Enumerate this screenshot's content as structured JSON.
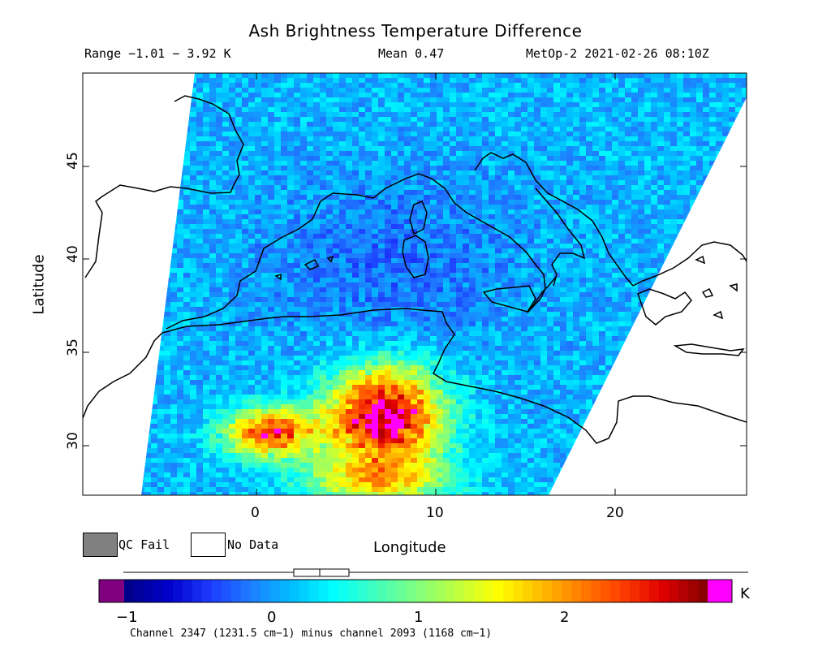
{
  "header": {
    "title": "Ash Brightness Temperature Difference",
    "range": "Range −1.01 − 3.92 K",
    "mean": "Mean 0.47",
    "satellite": "MetOp-2 2021-02-26 08:10Z"
  },
  "axes": {
    "xlabel": "Longitude",
    "ylabel": "Latitude",
    "xticks": [
      "0",
      "10",
      "20"
    ],
    "yticks": [
      "45",
      "40",
      "35",
      "30"
    ]
  },
  "legend": {
    "qc_fail": "QC Fail",
    "no_data": "No Data"
  },
  "colorbar": {
    "ticks": [
      "−1",
      "0",
      "1",
      "2"
    ],
    "unit": "K",
    "note": "Channel 2347 (1231.5 cm−1) minus channel 2093 (1168 cm−1)",
    "colors": [
      "#00008b",
      "#0000cd",
      "#1e3cff",
      "#1e7fff",
      "#00bfff",
      "#00ffff",
      "#3fffbf",
      "#7fff7f",
      "#bfff3f",
      "#ffff00",
      "#ffbf00",
      "#ff7f00",
      "#ff3f00",
      "#e00000",
      "#8b0000"
    ],
    "under_color": "#800080",
    "over_color": "#ff00ff"
  },
  "colors": {
    "qc_fail": "#808080",
    "no_data": "#ffffff"
  }
}
